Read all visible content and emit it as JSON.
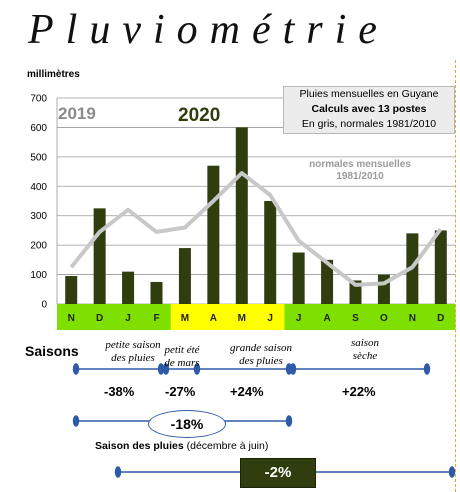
{
  "page": {
    "title": "Pluviométrie",
    "unit_label": "millimètres",
    "legend": {
      "line1": "Pluies mensuelles en Guyane",
      "line2": "Calculs avec 13 postes",
      "line3": "En gris, normales 1981/2010"
    },
    "year_prev": "2019",
    "year_curr": "2020",
    "normals_label_1": "normales mensuelles",
    "normals_label_2": "1981/2010"
  },
  "chart_data": {
    "type": "bar",
    "categories": [
      "N",
      "D",
      "J",
      "F",
      "M",
      "A",
      "M",
      "J",
      "J",
      "A",
      "S",
      "O",
      "N",
      "D"
    ],
    "series": [
      {
        "name": "Pluies mensuelles",
        "type": "bar",
        "color": "#2f3d0f",
        "values": [
          95,
          325,
          110,
          75,
          190,
          470,
          600,
          350,
          175,
          150,
          80,
          100,
          240,
          250
        ]
      },
      {
        "name": "normales mensuelles 1981/2010",
        "type": "line",
        "color": "#c8c8c8",
        "values": [
          125,
          245,
          320,
          245,
          260,
          350,
          445,
          370,
          215,
          140,
          65,
          70,
          125,
          255
        ]
      }
    ],
    "ylabel": "millimètres",
    "ylim": [
      0,
      700
    ],
    "yticks": [
      0,
      100,
      200,
      300,
      400,
      500,
      600,
      700
    ],
    "grid": true,
    "month_bg": [
      "green",
      "green",
      "green",
      "green",
      "yellow",
      "yellow",
      "yellow",
      "yellow",
      "green",
      "green",
      "green",
      "green",
      "green",
      "green"
    ]
  },
  "seasons": {
    "label": "Saisons",
    "items": [
      {
        "name_1": "petite saison",
        "name_2": "des pluies",
        "pct": "-38%"
      },
      {
        "name_1": "petit été",
        "name_2": "de mars",
        "pct": "-27%"
      },
      {
        "name_1": "grande saison",
        "name_2": "des pluies",
        "pct": "+24%"
      },
      {
        "name_1": "saison",
        "name_2": "sèche",
        "pct": "+22%"
      }
    ],
    "combined_pct": "-18%",
    "rainy_season_label": "Saison des pluies",
    "rainy_season_note": "(décembre à juin)",
    "rainy_season_pct": "-2%"
  },
  "colors": {
    "bar": "#2f3d0f",
    "normal_line": "#c8c8c8",
    "arrow": "#2f5aa8",
    "month_green": "#7fe000",
    "month_yellow": "#ffff00"
  }
}
